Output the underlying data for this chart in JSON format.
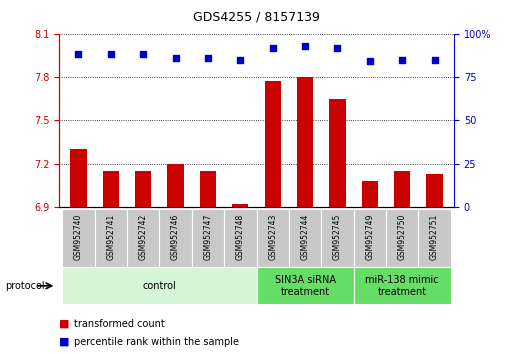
{
  "title": "GDS4255 / 8157139",
  "samples": [
    "GSM952740",
    "GSM952741",
    "GSM952742",
    "GSM952746",
    "GSM952747",
    "GSM952748",
    "GSM952743",
    "GSM952744",
    "GSM952745",
    "GSM952749",
    "GSM952750",
    "GSM952751"
  ],
  "transformed_count": [
    7.3,
    7.15,
    7.15,
    7.2,
    7.15,
    6.92,
    7.77,
    7.8,
    7.65,
    7.08,
    7.15,
    7.13
  ],
  "percentile_rank": [
    88,
    88,
    88,
    86,
    86,
    85,
    92,
    93,
    92,
    84,
    85,
    85
  ],
  "ylim_left": [
    6.9,
    8.1
  ],
  "ylim_right": [
    0,
    100
  ],
  "yticks_left": [
    6.9,
    7.2,
    7.5,
    7.8,
    8.1
  ],
  "yticks_right": [
    0,
    25,
    50,
    75,
    100
  ],
  "bar_color": "#cc0000",
  "dot_color": "#0000cc",
  "bg_color": "#ffffff",
  "groups": [
    {
      "label": "control",
      "start": 0,
      "end": 6,
      "color": "#d6f5d6"
    },
    {
      "label": "SIN3A siRNA\ntreatment",
      "start": 6,
      "end": 9,
      "color": "#66dd66"
    },
    {
      "label": "miR-138 mimic\ntreatment",
      "start": 9,
      "end": 12,
      "color": "#66dd66"
    }
  ],
  "legend_labels": [
    "transformed count",
    "percentile rank within the sample"
  ],
  "protocol_label": "protocol",
  "bar_width": 0.5,
  "dot_size": 22,
  "tick_label_fontsize": 7,
  "title_fontsize": 9,
  "sample_fontsize": 5.5,
  "group_fontsize": 7,
  "legend_fontsize": 7,
  "sample_box_color": "#c8c8c8"
}
